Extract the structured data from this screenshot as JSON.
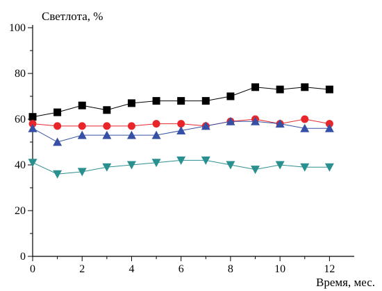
{
  "chart_data": {
    "type": "line",
    "ylabel": "Светлота, %",
    "xlabel": "Время, мес.",
    "xlim": [
      0,
      13
    ],
    "ylim": [
      0,
      100
    ],
    "x_ticks": [
      0,
      2,
      4,
      6,
      8,
      10,
      12
    ],
    "y_ticks": [
      0,
      20,
      40,
      60,
      80,
      100
    ],
    "grid": false,
    "x": [
      0,
      1,
      2,
      3,
      4,
      5,
      6,
      7,
      8,
      9,
      10,
      11,
      12
    ],
    "series": [
      {
        "marker": "square",
        "color": "#000000",
        "line_color": "#000000",
        "values": [
          61,
          63,
          66,
          64,
          67,
          68,
          68,
          68,
          70,
          74,
          73,
          74,
          73
        ]
      },
      {
        "marker": "circle",
        "color": "#e8262a",
        "line_color": "#e8262a",
        "values": [
          58,
          57,
          57,
          57,
          57,
          58,
          58,
          57,
          59,
          60,
          58,
          60,
          58
        ]
      },
      {
        "marker": "triangle-up",
        "color": "#3550a5",
        "line_color": "#3550a5",
        "values": [
          56,
          50,
          53,
          53,
          53,
          53,
          55,
          57,
          59,
          59,
          58,
          56,
          56
        ]
      },
      {
        "marker": "triangle-down",
        "color": "#2a8f8f",
        "line_color": "#2a8f8f",
        "values": [
          41,
          36,
          37,
          39,
          40,
          41,
          42,
          42,
          40,
          38,
          40,
          39,
          39
        ]
      }
    ]
  }
}
